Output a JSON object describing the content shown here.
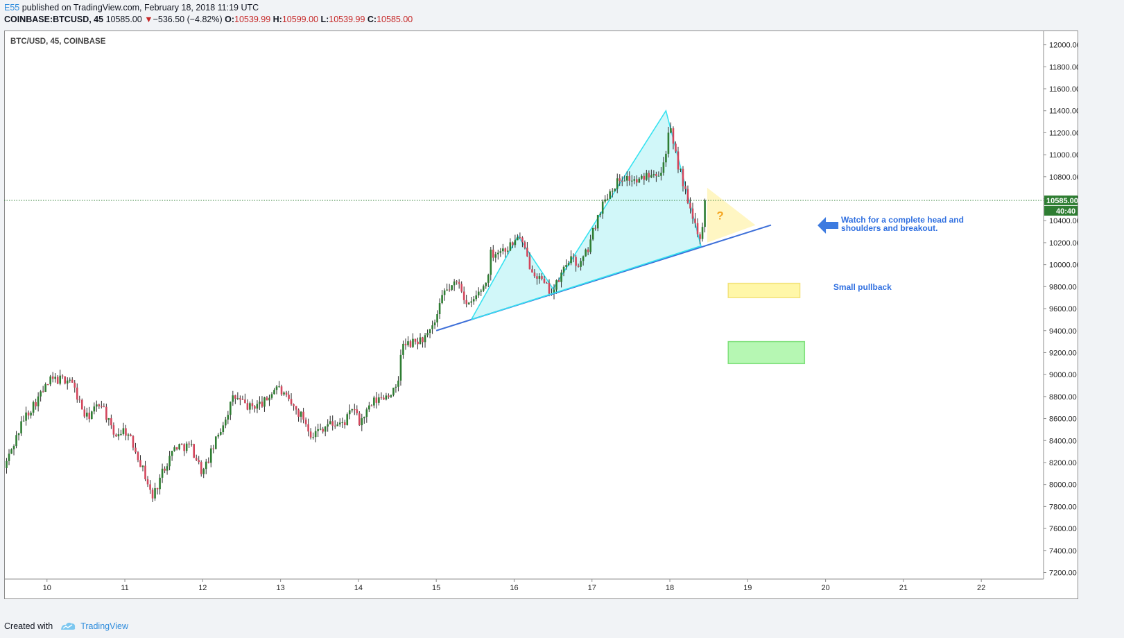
{
  "header": {
    "author": "E55",
    "published": "published on TradingView.com, February 18, 2018 11:19 UTC",
    "symbol": "COINBASE:BTCUSD, 45",
    "price": "10585.00",
    "change": "−536.50 (−4.82%)",
    "o_label": "O:",
    "o_value": "10539.99",
    "h_label": "H:",
    "h_value": "10599.00",
    "l_label": "L:",
    "l_value": "10539.99",
    "c_label": "C:",
    "c_value": "10585.00"
  },
  "chart_label": "BTC/USD, 45, COINBASE",
  "current_price_label": "10585.00",
  "countdown_label": "40:40",
  "footer": {
    "created_with": "Created with",
    "brand": "TradingView"
  },
  "colors": {
    "up": "#2e7d32",
    "down": "#d3465c",
    "pattern_fill": "#c9f6f8",
    "pattern_stroke": "#35e2f0",
    "trend_line": "#3d6fd8",
    "price_tag": "#2e7d32",
    "accent": "#2f6fe0"
  },
  "chart_data": {
    "type": "candlestick",
    "title": "BTC/USD, 45, COINBASE",
    "x_axis_labels": [
      "10",
      "11",
      "12",
      "13",
      "14",
      "15",
      "16",
      "17",
      "18",
      "19",
      "20",
      "21",
      "22"
    ],
    "x_range_days": [
      9.45,
      22.8
    ],
    "y_axis_labels": [
      "12000.00",
      "11800.00",
      "11600.00",
      "11400.00",
      "11200.00",
      "11000.00",
      "10800.00",
      "10600.00",
      "10400.00",
      "10200.00",
      "10000.00",
      "9800.00",
      "9600.00",
      "9400.00",
      "9200.00",
      "9000.00",
      "8800.00",
      "8600.00",
      "8400.00",
      "8200.00",
      "8000.00",
      "7800.00",
      "7600.00",
      "7400.00",
      "7200.00"
    ],
    "ylim": [
      7140,
      12130
    ],
    "current_price": 10585,
    "anchors": [
      [
        9.45,
        8150
      ],
      [
        9.7,
        8600
      ],
      [
        10.05,
        8950
      ],
      [
        10.3,
        8960
      ],
      [
        10.5,
        8600
      ],
      [
        10.7,
        8750
      ],
      [
        10.85,
        8450
      ],
      [
        11.0,
        8500
      ],
      [
        11.15,
        8300
      ],
      [
        11.3,
        8000
      ],
      [
        11.35,
        7870
      ],
      [
        11.5,
        8150
      ],
      [
        11.65,
        8350
      ],
      [
        11.85,
        8350
      ],
      [
        12.0,
        8100
      ],
      [
        12.2,
        8450
      ],
      [
        12.4,
        8800
      ],
      [
        12.6,
        8700
      ],
      [
        12.8,
        8750
      ],
      [
        12.95,
        8900
      ],
      [
        13.1,
        8750
      ],
      [
        13.3,
        8600
      ],
      [
        13.4,
        8450
      ],
      [
        13.6,
        8550
      ],
      [
        13.8,
        8550
      ],
      [
        13.95,
        8700
      ],
      [
        14.0,
        8550
      ],
      [
        14.2,
        8750
      ],
      [
        14.45,
        8850
      ],
      [
        14.5,
        8850
      ],
      [
        14.55,
        9250
      ],
      [
        14.75,
        9300
      ],
      [
        14.9,
        9350
      ],
      [
        15.0,
        9500
      ],
      [
        15.1,
        9750
      ],
      [
        15.3,
        9850
      ],
      [
        15.4,
        9600
      ],
      [
        15.65,
        9850
      ],
      [
        15.7,
        10100
      ],
      [
        15.9,
        10150
      ],
      [
        16.0,
        10200
      ],
      [
        16.05,
        10280
      ],
      [
        16.2,
        10000
      ],
      [
        16.4,
        9800
      ],
      [
        16.5,
        9750
      ],
      [
        16.7,
        10050
      ],
      [
        16.85,
        10000
      ],
      [
        16.95,
        10150
      ],
      [
        17.1,
        10500
      ],
      [
        17.25,
        10700
      ],
      [
        17.4,
        10800
      ],
      [
        17.6,
        10750
      ],
      [
        17.75,
        10850
      ],
      [
        17.9,
        10850
      ],
      [
        18.0,
        11250
      ],
      [
        18.05,
        11050
      ],
      [
        18.15,
        10800
      ],
      [
        18.25,
        10500
      ],
      [
        18.3,
        10400
      ],
      [
        18.4,
        10250
      ],
      [
        18.48,
        10585
      ]
    ],
    "pattern_polygon": [
      [
        15.45,
        9500
      ],
      [
        16.05,
        10260
      ],
      [
        16.5,
        9780
      ],
      [
        17.95,
        11400
      ],
      [
        18.4,
        10170
      ]
    ],
    "neckline": [
      [
        15.0,
        9400
      ],
      [
        19.3,
        10360
      ]
    ],
    "pattern_inner_line": [
      [
        15.45,
        9500
      ],
      [
        18.4,
        10170
      ]
    ],
    "projection_triangle": [
      [
        18.48,
        10700
      ],
      [
        19.1,
        10360
      ],
      [
        18.48,
        10200
      ]
    ],
    "zones": [
      {
        "name": "Small pullback",
        "x": [
          18.75,
          19.67
        ],
        "y": [
          9700,
          9830
        ],
        "fill": "#fff7a8",
        "stroke": "#f3e37a"
      },
      {
        "name": "",
        "x": [
          18.75,
          19.73
        ],
        "y": [
          9100,
          9300
        ],
        "fill": "#b6f7b3",
        "stroke": "#7ee07a"
      }
    ],
    "annotations": [
      {
        "text": "Watch for a complete head and",
        "line2": "shoulders and breakout.",
        "x": 20.2,
        "y": 10370
      },
      {
        "text": "Small pullback",
        "x": 20.1,
        "y": 9770
      },
      {
        "text": "?",
        "x": 18.6,
        "y": 10410
      }
    ]
  }
}
